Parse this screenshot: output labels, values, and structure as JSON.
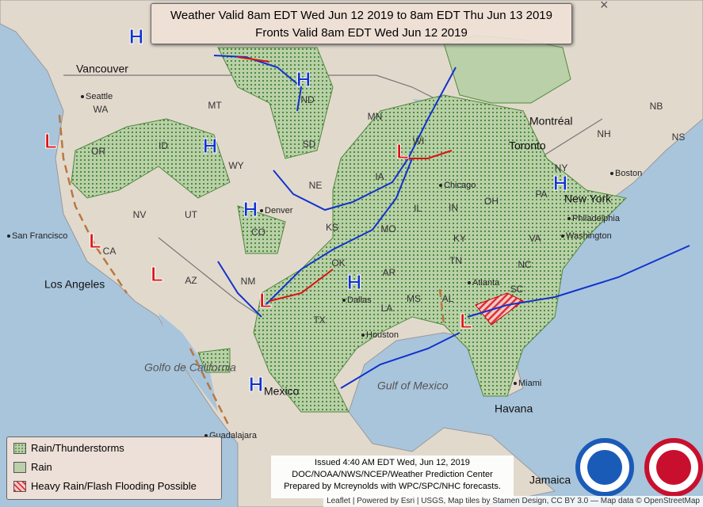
{
  "header": {
    "lines": [
      "Weather Valid 8am EDT Wed Jun 12 2019 to 8am EDT Thu Jun 13 2019",
      "Fronts Valid 8am EDT Wed Jun 12 2019"
    ]
  },
  "close": "×",
  "legend": {
    "items": [
      "Rain/Thunderstorms",
      "Rain",
      "Heavy Rain/Flash Flooding Possible"
    ]
  },
  "issued": {
    "lines": [
      "Issued 4:40 AM EDT Wed, Jun 12, 2019",
      "DOC/NOAA/NWS/NCEP/Weather Prediction Center",
      "Prepared by Mcreynolds with WPC/SPC/NHC forecasts."
    ]
  },
  "attribution": "Leaflet | Powered by Esri | USGS, Map tiles by Stamen Design, CC BY 3.0 — Map data © OpenStreetMap",
  "states": [
    "WA",
    "OR",
    "ID",
    "MT",
    "ND",
    "SD",
    "WY",
    "NV",
    "UT",
    "CO",
    "NE",
    "KS",
    "MN",
    "WI",
    "IA",
    "MO",
    "IL",
    "IN",
    "OH",
    "KY",
    "TN",
    "AR",
    "OK",
    "TX",
    "LA",
    "MS",
    "AL",
    "SC",
    "NC",
    "VA",
    "PA",
    "NY",
    "AZ",
    "NM",
    "CA",
    "NB",
    "NS",
    "NH"
  ],
  "cities": [
    "Seattle",
    "Denver",
    "Chicago",
    "Philadelphia",
    "Washington",
    "Atlanta",
    "Dallas",
    "Houston",
    "Miami",
    "San Francisco",
    "Boston",
    "Guadalajara"
  ],
  "big_places": [
    "Vancouver",
    "Montréal",
    "Toronto",
    "New York",
    "Los Angeles",
    "Mexico",
    "Havana",
    "Jamaica",
    "Golfo de California",
    "Gulf of Mexico"
  ],
  "pressure_centers": [
    "H",
    "H",
    "H",
    "H",
    "H",
    "H",
    "H",
    "L",
    "L",
    "L",
    "L",
    "L",
    "L"
  ]
}
